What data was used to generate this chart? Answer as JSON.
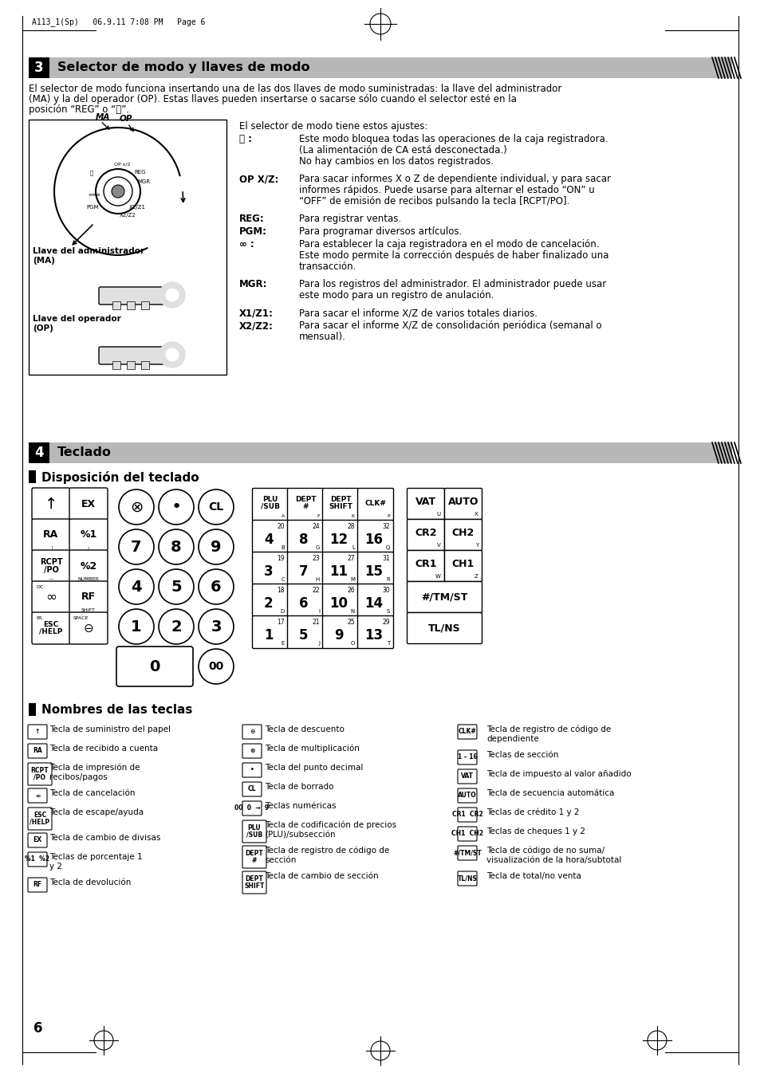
{
  "page_header": "A113_1(Sp)   06.9.11 7:08 PM   Page 6",
  "section3_num": "3",
  "section3_title": "Selector de modo y llaves de modo",
  "section3_intro_line1": "El selector de modo funciona insertando una de las dos llaves de modo suministradas: la llave del administrador",
  "section3_intro_line2": "(MA) y la del operador (OP). Estas llaves pueden insertarse o sacarse sólo cuando el selector esté en la",
  "section3_intro_line3": "posición “REG” o “⏻”.",
  "mode_selector_title": "El selector de modo tiene estos ajustes:",
  "mode_entries": [
    {
      "key": "⏻ :",
      "desc": "Este modo bloquea todas las operaciones de la caja registradora.\n(La alimentación de CA está desconectada.)\nNo hay cambios en los datos registrados."
    },
    {
      "key": "OP X/Z:",
      "desc": "Para sacar informes X o Z de dependiente individual, y para sacar\ninformes rápidos. Puede usarse para alternar el estado “ON” u\n“OFF” de emisión de recibos pulsando la tecla [RCPT/PO]."
    },
    {
      "key": "REG:",
      "desc": "Para registrar ventas."
    },
    {
      "key": "PGM:",
      "desc": "Para programar diversos artículos."
    },
    {
      "key": "∞ :",
      "desc": "Para establecer la caja registradora en el modo de cancelación.\nEste modo permite la corrección después de haber finalizado una\ntransacción."
    },
    {
      "key": "MGR:",
      "desc": "Para los registros del administrador. El administrador puede usar\neste modo para un registro de anulación."
    },
    {
      "key": "X1/Z1:",
      "desc": "Para sacar el informe X/Z de varios totales diarios."
    },
    {
      "key": "X2/Z2:",
      "desc": "Para sacar el informe X/Z de consolidación periódica (semanal o\nmensual)."
    }
  ],
  "llave_admin": "Llave del administrador\n(MA)",
  "llave_op": "Llave del operador\n(OP)",
  "section4_num": "4",
  "section4_title": "Teclado",
  "disposicion_title": "Disposición del teclado",
  "nombres_title": "Nombres de las teclas",
  "page_number": "6",
  "bg_color": "#ffffff"
}
